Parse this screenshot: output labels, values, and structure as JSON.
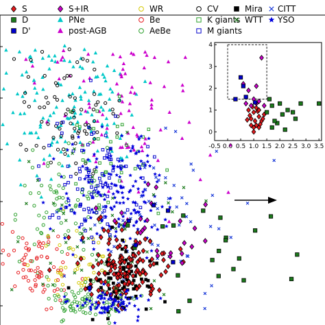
{
  "chart_data": [
    {
      "type": "scatter",
      "panel": "main",
      "title": "",
      "xlabel": "",
      "ylabel": "",
      "grid": false,
      "legend_placement": "top",
      "annotations": [
        "arrow pointing right"
      ],
      "series": [
        {
          "name": "S",
          "marker": "diamond",
          "color": "#e6191c",
          "edge": "#000000"
        },
        {
          "name": "S+IR",
          "marker": "diamond",
          "color": "#cc00cc",
          "edge": "#000000"
        },
        {
          "name": "WR",
          "marker": "circle-open",
          "color": "#d4c800"
        },
        {
          "name": "CV",
          "marker": "circle-open",
          "color": "#000000"
        },
        {
          "name": "Mira",
          "marker": "square",
          "color": "#000000"
        },
        {
          "name": "CITT",
          "marker": "x",
          "color": "#1f3fd9"
        },
        {
          "name": "D",
          "marker": "square",
          "color": "#1b7a1b",
          "edge": "#000000"
        },
        {
          "name": "PNe",
          "marker": "triangle",
          "color": "#00c8c8"
        },
        {
          "name": "Be",
          "marker": "circle-open",
          "color": "#e6191c"
        },
        {
          "name": "K giants",
          "marker": "square-open",
          "color": "#2ca02c"
        },
        {
          "name": "WTT",
          "marker": "x",
          "color": "#1b7a1b"
        },
        {
          "name": "YSO",
          "marker": "star",
          "color": "#0000dd"
        },
        {
          "name": "D'",
          "marker": "square",
          "color": "#0000cc",
          "edge": "#000000"
        },
        {
          "name": "post-AGB",
          "marker": "triangle",
          "color": "#cc00cc"
        },
        {
          "name": "AeBe",
          "marker": "circle-open",
          "color": "#2ca02c"
        },
        {
          "name": "M giants",
          "marker": "square-open",
          "color": "#0000cc"
        }
      ]
    },
    {
      "type": "scatter",
      "panel": "inset",
      "title": "",
      "xlabel": "",
      "ylabel": "",
      "xlim": [
        -0.5,
        3.6
      ],
      "ylim": [
        -0.4,
        4.1
      ],
      "x_ticks": [
        "-0.5",
        "0.0",
        "0.5",
        "1.0",
        "1.5",
        "2.0",
        "2.5",
        "3.0",
        "3.5"
      ],
      "y_ticks": [
        "0",
        "1",
        "2",
        "3",
        "4"
      ],
      "dashed_box": {
        "x": [
          0.0,
          1.5
        ],
        "y": [
          1.5,
          4.0
        ]
      },
      "series": [
        {
          "name": "S",
          "color": "#e6191c",
          "points": [
            [
              0.9,
              0.6
            ],
            [
              1.0,
              0.9
            ],
            [
              1.1,
              0.3
            ],
            [
              1.2,
              0.7
            ],
            [
              0.8,
              1.0
            ],
            [
              1.3,
              0.5
            ],
            [
              1.0,
              0.2
            ],
            [
              1.1,
              1.1
            ],
            [
              0.9,
              0.3
            ],
            [
              1.2,
              0.2
            ],
            [
              1.4,
              0.8
            ],
            [
              0.85,
              0.75
            ],
            [
              1.05,
              0.5
            ],
            [
              1.15,
              0.95
            ],
            [
              1.25,
              0.35
            ],
            [
              0.95,
              1.15
            ],
            [
              1.35,
              0.6
            ],
            [
              1.0,
              0.0
            ],
            [
              1.2,
              1.0
            ],
            [
              0.75,
              0.55
            ]
          ]
        },
        {
          "name": "S+IR",
          "color": "#cc00cc",
          "points": [
            [
              1.3,
              3.4
            ],
            [
              0.6,
              2.2
            ],
            [
              1.1,
              2.1
            ],
            [
              0.8,
              1.9
            ],
            [
              1.0,
              1.5
            ],
            [
              0.7,
              1.3
            ],
            [
              1.2,
              1.4
            ],
            [
              1.4,
              1.2
            ],
            [
              0.9,
              1.2
            ],
            [
              1.1,
              1.3
            ]
          ]
        },
        {
          "name": "D",
          "color": "#1b7a1b",
          "points": [
            [
              3.5,
              1.3
            ],
            [
              2.5,
              0.9
            ],
            [
              2.6,
              0.6
            ],
            [
              2.2,
              0.1
            ],
            [
              1.9,
              0.4
            ],
            [
              2.1,
              0.8
            ],
            [
              2.3,
              1.0
            ],
            [
              1.7,
              1.2
            ],
            [
              1.8,
              0.5
            ],
            [
              2.0,
              1.3
            ],
            [
              1.6,
              1.5
            ],
            [
              2.8,
              1.3
            ],
            [
              1.5,
              0.9
            ],
            [
              1.7,
              0.2
            ]
          ]
        },
        {
          "name": "D'",
          "color": "#0000cc",
          "points": [
            [
              0.5,
              2.5
            ],
            [
              0.6,
              2.1
            ],
            [
              0.7,
              1.6
            ],
            [
              0.3,
              1.5
            ],
            [
              1.05,
              1.35
            ]
          ]
        }
      ]
    }
  ]
}
